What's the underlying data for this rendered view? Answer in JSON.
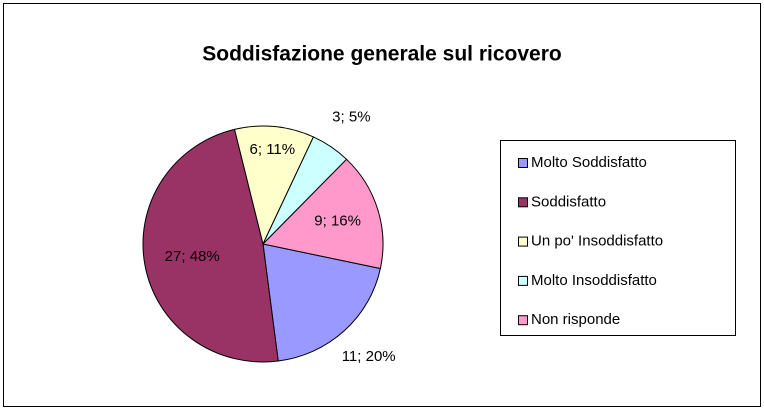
{
  "chart_data": {
    "type": "pie",
    "title": "Soddisfazione generale sul ricovero",
    "categories": [
      "Molto Soddisfatto",
      "Soddisfatto",
      "Un po' Insoddisfatto",
      "Molto Insoddisfatto",
      "Non risponde"
    ],
    "values": [
      11,
      27,
      6,
      3,
      9
    ],
    "value_labels": [
      "11; 20%",
      "27; 48%",
      "6; 11%",
      "3; 5%",
      "9; 16%"
    ],
    "colors": [
      "#9999ff",
      "#993366",
      "#ffffcc",
      "#ccffff",
      "#ff99cc"
    ],
    "legend": "right"
  }
}
